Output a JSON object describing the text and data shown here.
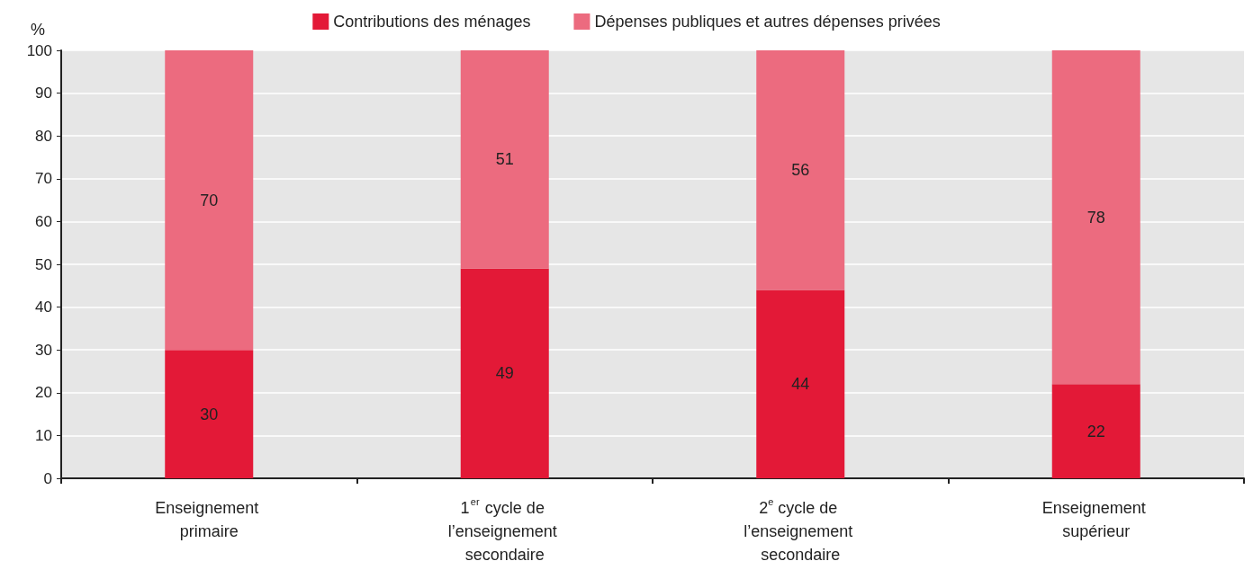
{
  "chart_data": {
    "type": "bar",
    "stacked": true,
    "ylabel": "%",
    "categories": [
      "Enseignement primaire",
      "1$^{er}$ cycle de l’enseignement secondaire",
      "2$^{e}$ cycle de l’enseignement secondaire",
      "Enseignement supérieur"
    ],
    "series": [
      {
        "name": "Contributions des ménages",
        "color": "#e31937",
        "values": [
          30,
          49,
          44,
          22
        ]
      },
      {
        "name": "Dépenses publiques et autres dépenses privées",
        "color": "#ec6b7f",
        "values": [
          70,
          51,
          56,
          78
        ]
      }
    ],
    "ylim": [
      0,
      100
    ],
    "yticks": [
      0,
      10,
      20,
      30,
      40,
      50,
      60,
      70,
      80,
      90,
      100
    ],
    "grid": "y",
    "legend": "top",
    "data_labels": true
  }
}
